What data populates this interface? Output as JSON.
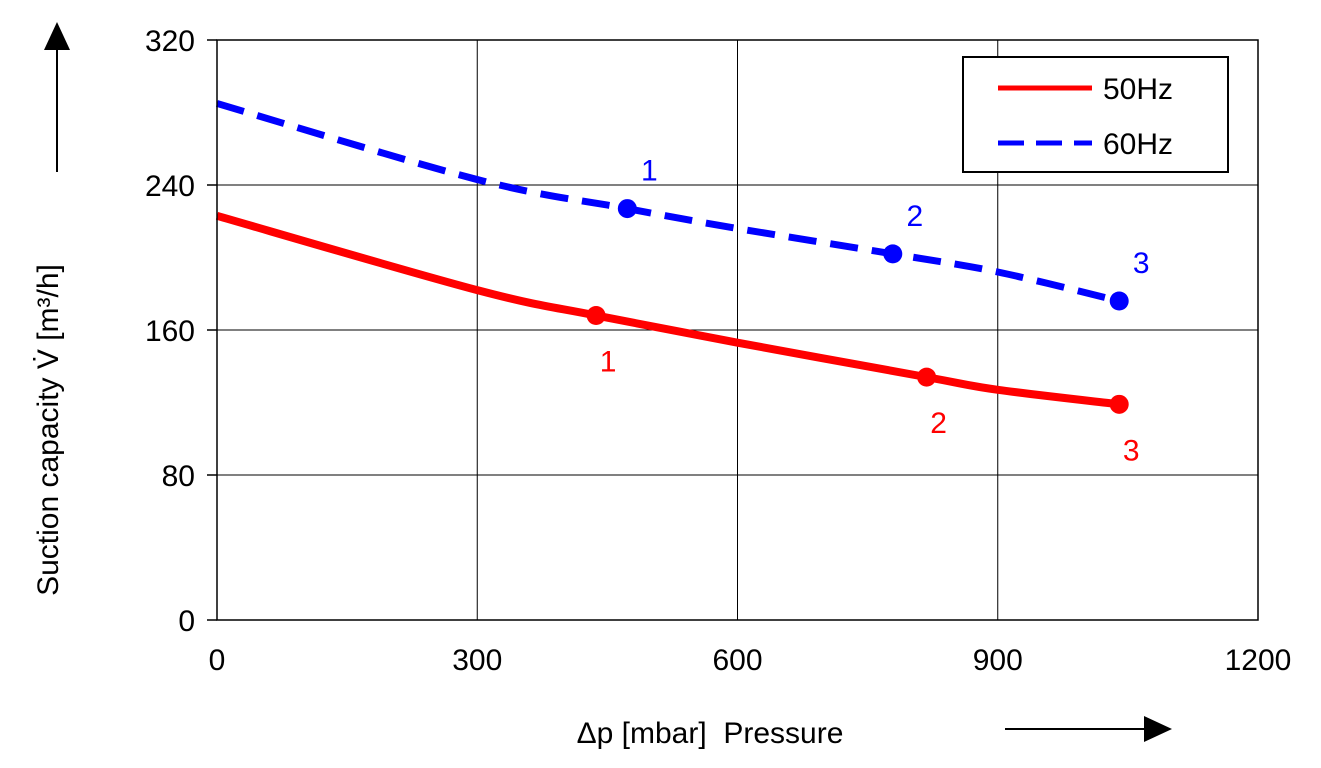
{
  "chart_data": {
    "type": "line",
    "title": "",
    "xlabel": "Δp [mbar]  Pressure",
    "ylabel": "Suction capacity V̇ [m³/h]",
    "xlim": [
      0,
      1200
    ],
    "ylim": [
      0,
      320
    ],
    "xticks": [
      0,
      300,
      600,
      900,
      1200
    ],
    "yticks": [
      0,
      80,
      160,
      240,
      320
    ],
    "grid": true,
    "legend_position": "top-right",
    "series": [
      {
        "name": "50Hz",
        "color": "#ff0000",
        "style": "solid",
        "curve": [
          [
            0,
            223
          ],
          [
            300,
            182
          ],
          [
            437,
            168
          ],
          [
            600,
            153
          ],
          [
            818,
            134
          ],
          [
            900,
            127
          ],
          [
            1040,
            119
          ]
        ],
        "points": [
          {
            "label": "1",
            "x": 437,
            "y": 168
          },
          {
            "label": "2",
            "x": 818,
            "y": 134
          },
          {
            "label": "3",
            "x": 1040,
            "y": 119
          }
        ]
      },
      {
        "name": "60Hz",
        "color": "#0000ff",
        "style": "dashed",
        "curve": [
          [
            0,
            285
          ],
          [
            300,
            243
          ],
          [
            473,
            227
          ],
          [
            600,
            216
          ],
          [
            779,
            202
          ],
          [
            900,
            192
          ],
          [
            1040,
            176
          ]
        ],
        "points": [
          {
            "label": "1",
            "x": 473,
            "y": 227
          },
          {
            "label": "2",
            "x": 779,
            "y": 202
          },
          {
            "label": "3",
            "x": 1040,
            "y": 176
          }
        ]
      }
    ]
  }
}
